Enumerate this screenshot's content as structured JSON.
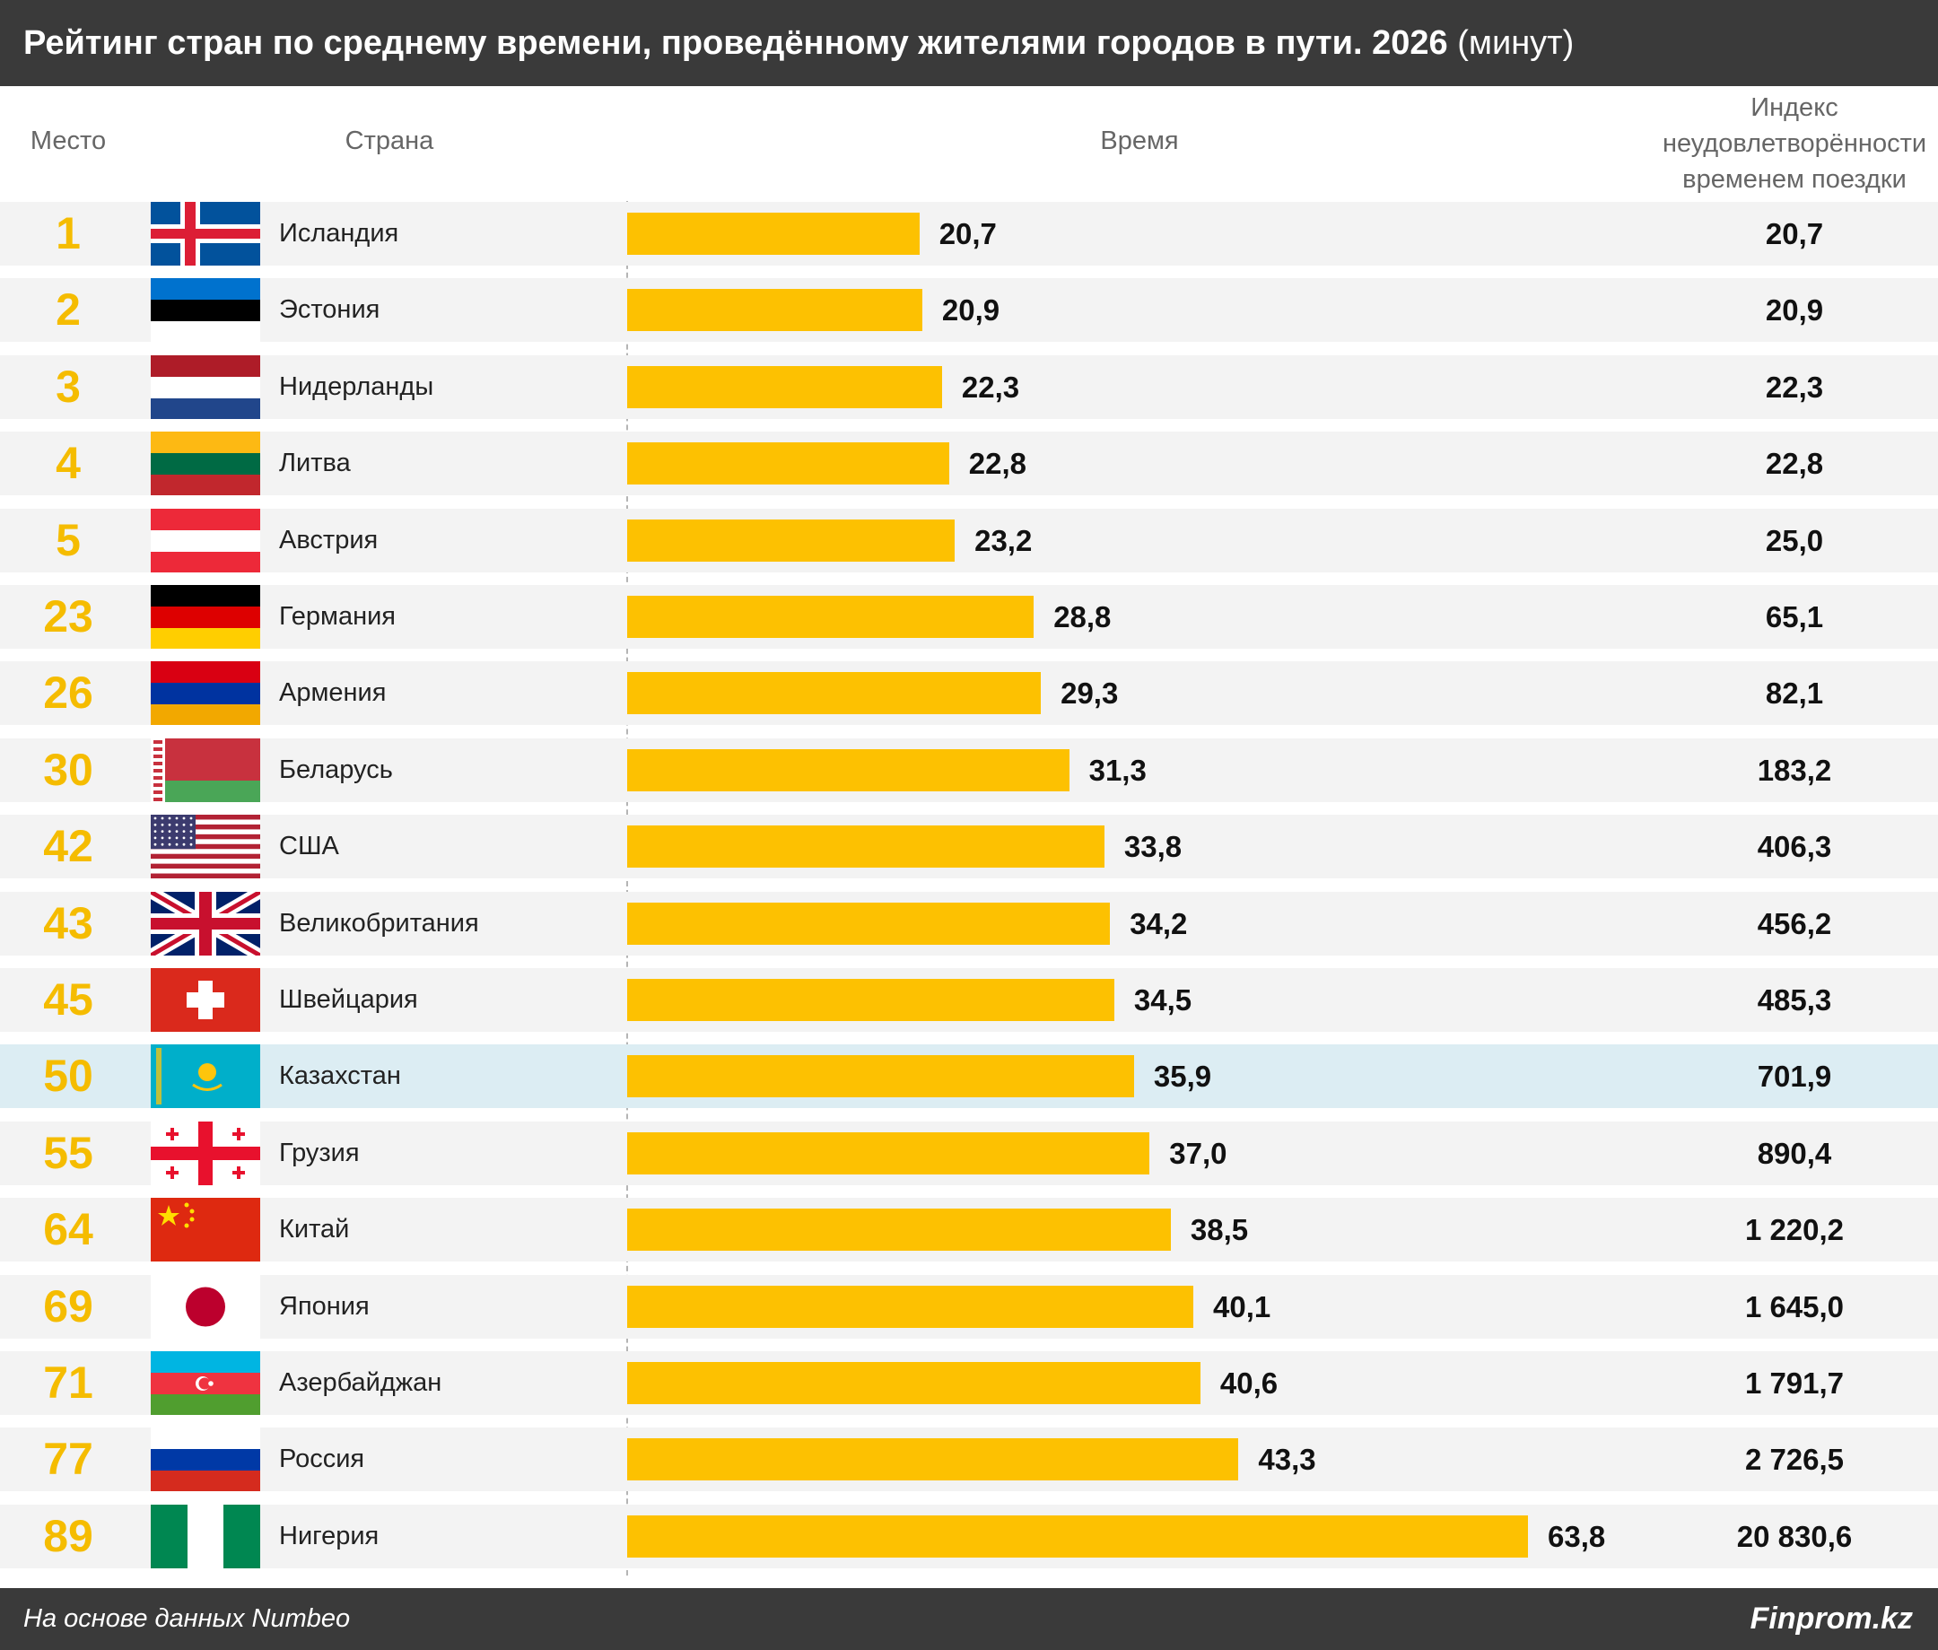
{
  "title": "Рейтинг стран по среднему времени, проведённому жителями городов в пути. 2026",
  "title_unit": "(минут)",
  "headers": {
    "rank": "Место",
    "country": "Страна",
    "time": "Время",
    "index": "Индекс неудовлетворённости временем поездки"
  },
  "footer": {
    "source": "На основе данных Numbeo",
    "brand": "Finprom.kz"
  },
  "colors": {
    "bar": "#fdc101",
    "rank": "#f5bc00",
    "highlight_row": "#dcedf3"
  },
  "chart_data": {
    "type": "bar",
    "orientation": "horizontal",
    "xlim": [
      0,
      63.8
    ],
    "rows": [
      {
        "rank": "1",
        "country": "Исландия",
        "flag": "iceland-flag",
        "time": 20.7,
        "time_label": "20,7",
        "index": "20,7"
      },
      {
        "rank": "2",
        "country": "Эстония",
        "flag": "estonia-flag",
        "time": 20.9,
        "time_label": "20,9",
        "index": "20,9"
      },
      {
        "rank": "3",
        "country": "Нидерланды",
        "flag": "netherlands-flag",
        "time": 22.3,
        "time_label": "22,3",
        "index": "22,3"
      },
      {
        "rank": "4",
        "country": "Литва",
        "flag": "lithuania-flag",
        "time": 22.8,
        "time_label": "22,8",
        "index": "22,8"
      },
      {
        "rank": "5",
        "country": "Австрия",
        "flag": "austria-flag",
        "time": 23.2,
        "time_label": "23,2",
        "index": "25,0"
      },
      {
        "rank": "23",
        "country": "Германия",
        "flag": "germany-flag",
        "time": 28.8,
        "time_label": "28,8",
        "index": "65,1"
      },
      {
        "rank": "26",
        "country": "Армения",
        "flag": "armenia-flag",
        "time": 29.3,
        "time_label": "29,3",
        "index": "82,1"
      },
      {
        "rank": "30",
        "country": "Беларусь",
        "flag": "belarus-flag",
        "time": 31.3,
        "time_label": "31,3",
        "index": "183,2"
      },
      {
        "rank": "42",
        "country": "США",
        "flag": "usa-flag",
        "time": 33.8,
        "time_label": "33,8",
        "index": "406,3"
      },
      {
        "rank": "43",
        "country": "Великобритания",
        "flag": "uk-flag",
        "time": 34.2,
        "time_label": "34,2",
        "index": "456,2"
      },
      {
        "rank": "45",
        "country": "Швейцария",
        "flag": "switzerland-flag",
        "time": 34.5,
        "time_label": "34,5",
        "index": "485,3"
      },
      {
        "rank": "50",
        "country": "Казахстан",
        "flag": "kazakhstan-flag",
        "time": 35.9,
        "time_label": "35,9",
        "index": "701,9",
        "highlight": true
      },
      {
        "rank": "55",
        "country": "Грузия",
        "flag": "georgia-flag",
        "time": 37.0,
        "time_label": "37,0",
        "index": "890,4"
      },
      {
        "rank": "64",
        "country": "Китай",
        "flag": "china-flag",
        "time": 38.5,
        "time_label": "38,5",
        "index": "1 220,2"
      },
      {
        "rank": "69",
        "country": "Япония",
        "flag": "japan-flag",
        "time": 40.1,
        "time_label": "40,1",
        "index": "1 645,0"
      },
      {
        "rank": "71",
        "country": "Азербайджан",
        "flag": "azerbaijan-flag",
        "time": 40.6,
        "time_label": "40,6",
        "index": "1 791,7"
      },
      {
        "rank": "77",
        "country": "Россия",
        "flag": "russia-flag",
        "time": 43.3,
        "time_label": "43,3",
        "index": "2 726,5"
      },
      {
        "rank": "89",
        "country": "Нигерия",
        "flag": "nigeria-flag",
        "time": 63.8,
        "time_label": "63,8",
        "index": "20 830,6"
      }
    ]
  }
}
